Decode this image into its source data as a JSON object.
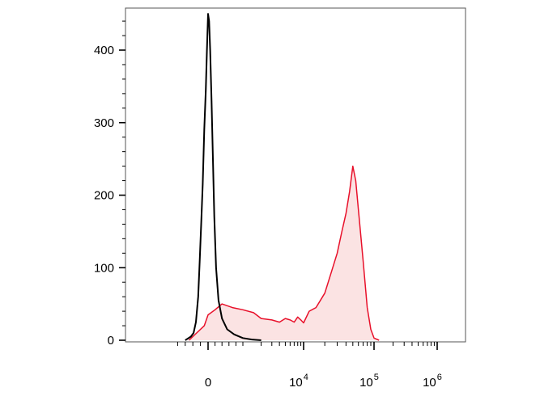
{
  "chart_data": {
    "type": "area",
    "title": "",
    "xlabel": "",
    "ylabel": "",
    "xscale": "biexponential",
    "ylim": [
      0,
      450
    ],
    "yticks": [
      {
        "value": 0,
        "label": "0"
      },
      {
        "value": 100,
        "label": "100"
      },
      {
        "value": 200,
        "label": "200"
      },
      {
        "value": 300,
        "label": "300"
      },
      {
        "value": 400,
        "label": "400"
      }
    ],
    "xticks": [
      {
        "value": 0,
        "base": "0",
        "exp": ""
      },
      {
        "value": 10000,
        "base": "10",
        "exp": "4"
      },
      {
        "value": 100000,
        "base": "10",
        "exp": "5"
      },
      {
        "value": 1000000,
        "base": "10",
        "exp": "6"
      }
    ],
    "grid": false,
    "legend": "none",
    "series": [
      {
        "color": "#000000",
        "fill": "none",
        "x": [
          -600,
          -450,
          -380,
          -320,
          -260,
          -220,
          -180,
          -140,
          -100,
          -60,
          -30,
          0,
          30,
          60,
          100,
          140,
          180,
          230,
          300,
          400,
          550,
          750,
          1000,
          1400,
          2000
        ],
        "y": [
          0,
          5,
          10,
          25,
          60,
          110,
          160,
          215,
          290,
          345,
          400,
          450,
          440,
          400,
          330,
          250,
          170,
          100,
          55,
          30,
          15,
          8,
          3,
          1,
          0
        ]
      },
      {
        "color": "#e8102a",
        "fill": "#fbe3e3",
        "x": [
          -500,
          -300,
          -100,
          0,
          200,
          400,
          700,
          1000,
          1500,
          2000,
          3000,
          4000,
          5000,
          6000,
          7000,
          8000,
          9000,
          10000,
          12000,
          15000,
          20000,
          25000,
          30000,
          35000,
          40000,
          45000,
          50000,
          55000,
          60000,
          70000,
          80000,
          90000,
          100000,
          120000
        ],
        "y": [
          0,
          10,
          20,
          35,
          42,
          50,
          45,
          42,
          38,
          30,
          28,
          25,
          30,
          28,
          25,
          32,
          28,
          24,
          40,
          45,
          65,
          95,
          120,
          150,
          175,
          205,
          240,
          220,
          180,
          110,
          45,
          15,
          3,
          0
        ]
      }
    ]
  }
}
